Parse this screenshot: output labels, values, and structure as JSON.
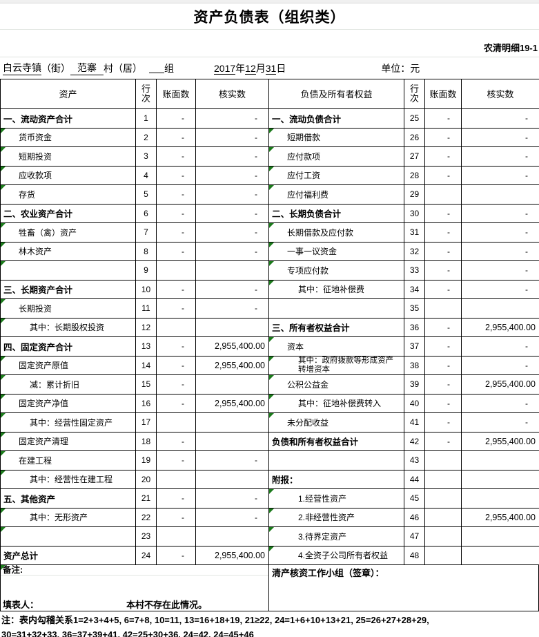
{
  "title": "资产负债表（组织类）",
  "doc_code": "农清明细19-1",
  "info": {
    "town": "白云寺镇",
    "town_suffix": "（街）",
    "village": "范寨",
    "village_suffix": "村（居）",
    "group_suffix": "组",
    "year": "2017",
    "year_unit": "年",
    "month": "12",
    "month_unit": "月",
    "day": "31",
    "day_unit": "日",
    "unit_label": "单位：元"
  },
  "table": {
    "headers": {
      "asset": "资产",
      "row_no": "行次",
      "book": "账面数",
      "verified": "核实数",
      "liability": "负债及所有者权益"
    },
    "asset_rows": [
      {
        "label": "一、流动资产合计",
        "no": "1",
        "book": "-",
        "verified": "-",
        "bold": true,
        "ind": 0,
        "tri": false
      },
      {
        "label": "货币资金",
        "no": "2",
        "book": "-",
        "verified": "-",
        "bold": false,
        "ind": 1,
        "tri": true
      },
      {
        "label": "短期投资",
        "no": "3",
        "book": "-",
        "verified": "-",
        "bold": false,
        "ind": 1,
        "tri": true
      },
      {
        "label": "应收款项",
        "no": "4",
        "book": "-",
        "verified": "-",
        "bold": false,
        "ind": 1,
        "tri": true
      },
      {
        "label": "存货",
        "no": "5",
        "book": "-",
        "verified": "-",
        "bold": false,
        "ind": 1,
        "tri": true
      },
      {
        "label": "二、农业资产合计",
        "no": "6",
        "book": "-",
        "verified": "-",
        "bold": true,
        "ind": 0,
        "tri": false
      },
      {
        "label": "牲畜（禽）资产",
        "no": "7",
        "book": "-",
        "verified": "-",
        "bold": false,
        "ind": 1,
        "tri": true
      },
      {
        "label": "林木资产",
        "no": "8",
        "book": "-",
        "verified": "-",
        "bold": false,
        "ind": 1,
        "tri": true
      },
      {
        "label": "",
        "no": "9",
        "book": "",
        "verified": "",
        "bold": false,
        "ind": 1,
        "tri": true
      },
      {
        "label": "三、长期资产合计",
        "no": "10",
        "book": "-",
        "verified": "-",
        "bold": true,
        "ind": 0,
        "tri": false
      },
      {
        "label": "长期投资",
        "no": "11",
        "book": "-",
        "verified": "-",
        "bold": false,
        "ind": 1,
        "tri": true
      },
      {
        "label": "其中：长期股权投资",
        "no": "12",
        "book": "",
        "verified": "",
        "bold": false,
        "ind": 2,
        "tri": true
      },
      {
        "label": "四、固定资产合计",
        "no": "13",
        "book": "-",
        "verified": "2,955,400.00",
        "bold": true,
        "ind": 0,
        "tri": false
      },
      {
        "label": "固定资产原值",
        "no": "14",
        "book": "-",
        "verified": "2,955,400.00",
        "bold": false,
        "ind": 1,
        "tri": true
      },
      {
        "label": "减：累计折旧",
        "no": "15",
        "book": "-",
        "verified": "",
        "bold": false,
        "ind": 2,
        "tri": true
      },
      {
        "label": "固定资产净值",
        "no": "16",
        "book": "-",
        "verified": "2,955,400.00",
        "bold": false,
        "ind": 1,
        "tri": true
      },
      {
        "label": "其中：经营性固定资产",
        "no": "17",
        "book": "",
        "verified": "",
        "bold": false,
        "ind": 2,
        "tri": true
      },
      {
        "label": "固定资产清理",
        "no": "18",
        "book": "-",
        "verified": "",
        "bold": false,
        "ind": 1,
        "tri": true
      },
      {
        "label": "在建工程",
        "no": "19",
        "book": "-",
        "verified": "-",
        "bold": false,
        "ind": 1,
        "tri": true
      },
      {
        "label": "其中：经营性在建工程",
        "no": "20",
        "book": "",
        "verified": "",
        "bold": false,
        "ind": 2,
        "tri": true
      },
      {
        "label": "五、其他资产",
        "no": "21",
        "book": "-",
        "verified": "-",
        "bold": true,
        "ind": 0,
        "tri": false
      },
      {
        "label": "其中：无形资产",
        "no": "22",
        "book": "-",
        "verified": "-",
        "bold": false,
        "ind": 2,
        "tri": true
      },
      {
        "label": "",
        "no": "23",
        "book": "",
        "verified": "",
        "bold": false,
        "ind": 1,
        "tri": true
      },
      {
        "label": "资产总计",
        "no": "24",
        "book": "-",
        "verified": "2,955,400.00",
        "bold": true,
        "ind": 0,
        "tri": false
      }
    ],
    "liability_rows": [
      {
        "label": "一、流动负债合计",
        "no": "25",
        "book": "-",
        "verified": "-",
        "bold": true,
        "ind": 0,
        "tri": false
      },
      {
        "label": "短期借款",
        "no": "26",
        "book": "-",
        "verified": "-",
        "bold": false,
        "ind": 1,
        "tri": true
      },
      {
        "label": "应付款项",
        "no": "27",
        "book": "-",
        "verified": "-",
        "bold": false,
        "ind": 1,
        "tri": true
      },
      {
        "label": "应付工资",
        "no": "28",
        "book": "-",
        "verified": "-",
        "bold": false,
        "ind": 1,
        "tri": true
      },
      {
        "label": "应付福利费",
        "no": "29",
        "book": "",
        "verified": "",
        "bold": false,
        "ind": 1,
        "tri": true
      },
      {
        "label": "二、长期负债合计",
        "no": "30",
        "book": "-",
        "verified": "-",
        "bold": true,
        "ind": 0,
        "tri": false
      },
      {
        "label": "长期借款及应付款",
        "no": "31",
        "book": "-",
        "verified": "-",
        "bold": false,
        "ind": 1,
        "tri": true
      },
      {
        "label": "一事一议资金",
        "no": "32",
        "book": "-",
        "verified": "-",
        "bold": false,
        "ind": 1,
        "tri": true
      },
      {
        "label": "专项应付款",
        "no": "33",
        "book": "-",
        "verified": "-",
        "bold": false,
        "ind": 1,
        "tri": true
      },
      {
        "label": "其中：征地补偿费",
        "no": "34",
        "book": "-",
        "verified": "-",
        "bold": false,
        "ind": 2,
        "tri": true
      },
      {
        "label": "",
        "no": "35",
        "book": "",
        "verified": "",
        "bold": false,
        "ind": 1,
        "tri": false
      },
      {
        "label": "三、所有者权益合计",
        "no": "36",
        "book": "-",
        "verified": "2,955,400.00",
        "bold": true,
        "ind": 0,
        "tri": false
      },
      {
        "label": "资本",
        "no": "37",
        "book": "-",
        "verified": "-",
        "bold": false,
        "ind": 1,
        "tri": true
      },
      {
        "label": "其中：政府拨款等形成资产\n转增资本",
        "no": "38",
        "book": "-",
        "verified": "-",
        "bold": false,
        "ind": 2,
        "tri": true
      },
      {
        "label": "公积公益金",
        "no": "39",
        "book": "-",
        "verified": "2,955,400.00",
        "bold": false,
        "ind": 1,
        "tri": true
      },
      {
        "label": "其中：征地补偿费转入",
        "no": "40",
        "book": "-",
        "verified": "-",
        "bold": false,
        "ind": 2,
        "tri": true
      },
      {
        "label": "未分配收益",
        "no": "41",
        "book": "-",
        "verified": "-",
        "bold": false,
        "ind": 1,
        "tri": true
      },
      {
        "label": "负债和所有者权益合计",
        "no": "42",
        "book": "-",
        "verified": "2,955,400.00",
        "bold": true,
        "ind": 0,
        "tri": false
      },
      {
        "label": "",
        "no": "43",
        "book": "",
        "verified": "",
        "bold": false,
        "ind": 1,
        "tri": false
      },
      {
        "label": "附报：",
        "no": "44",
        "book": "",
        "verified": "",
        "bold": true,
        "ind": 0,
        "tri": false
      },
      {
        "label": "1.经营性资产",
        "no": "45",
        "book": "",
        "verified": "",
        "bold": false,
        "ind": 2,
        "tri": true
      },
      {
        "label": "2.非经营性资产",
        "no": "46",
        "book": "",
        "verified": "2,955,400.00",
        "bold": false,
        "ind": 2,
        "tri": true
      },
      {
        "label": "3.待界定资产",
        "no": "47",
        "book": "",
        "verified": "",
        "bold": false,
        "ind": 2,
        "tri": true
      },
      {
        "label": "4.全资子公司所有者权益",
        "no": "48",
        "book": "",
        "verified": "",
        "bold": false,
        "ind": 2,
        "tri": true
      }
    ]
  },
  "footer": {
    "remark_label": "备注:",
    "preparer_label": "填表人：",
    "preparer_note": "本村不存在此情况。",
    "signature_label": "清产核资工作小组（签章）：",
    "note_line1": "注：表内勾稽关系1=2+3+4+5, 6=7+8, 10=11, 13=16+18+19, 21≥22, 24=1+6+10+13+21, 25=26+27+28+29,",
    "note_line2": "30=31+32+33, 36=37+39+41, 42=25+30+36, 24=42, 24=45+46"
  }
}
